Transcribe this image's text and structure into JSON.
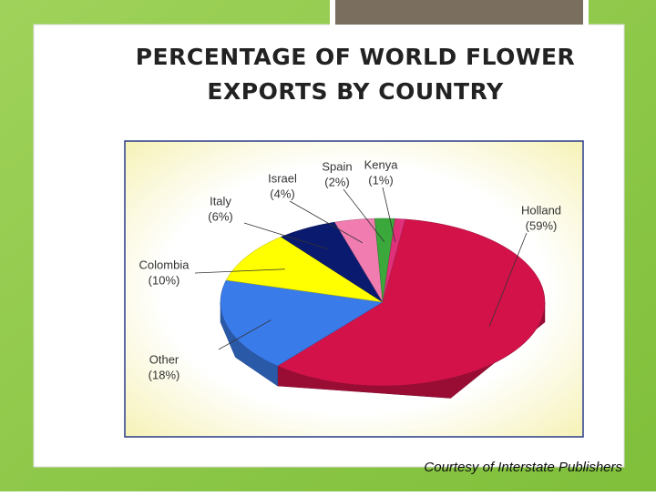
{
  "chart_data": {
    "type": "pie",
    "title": "PERCENTAGE OF WORLD FLOWER EXPORTS BY COUNTRY",
    "categories": [
      "Holland",
      "Other",
      "Colombia",
      "Italy",
      "Israel",
      "Spain",
      "Kenya"
    ],
    "values": [
      59,
      18,
      10,
      6,
      4,
      2,
      1
    ],
    "value_labels": [
      "(59%)",
      "(18%)",
      "(10%)",
      "(6%)",
      "(4%)",
      "(2%)",
      "(1%)"
    ],
    "colors": [
      "#d4124a",
      "#3a7bea",
      "#ffff00",
      "#0a1a6e",
      "#f07cb0",
      "#3aa83a",
      "#e0307a"
    ],
    "source": "Courtesy of Interstate Publishers"
  }
}
